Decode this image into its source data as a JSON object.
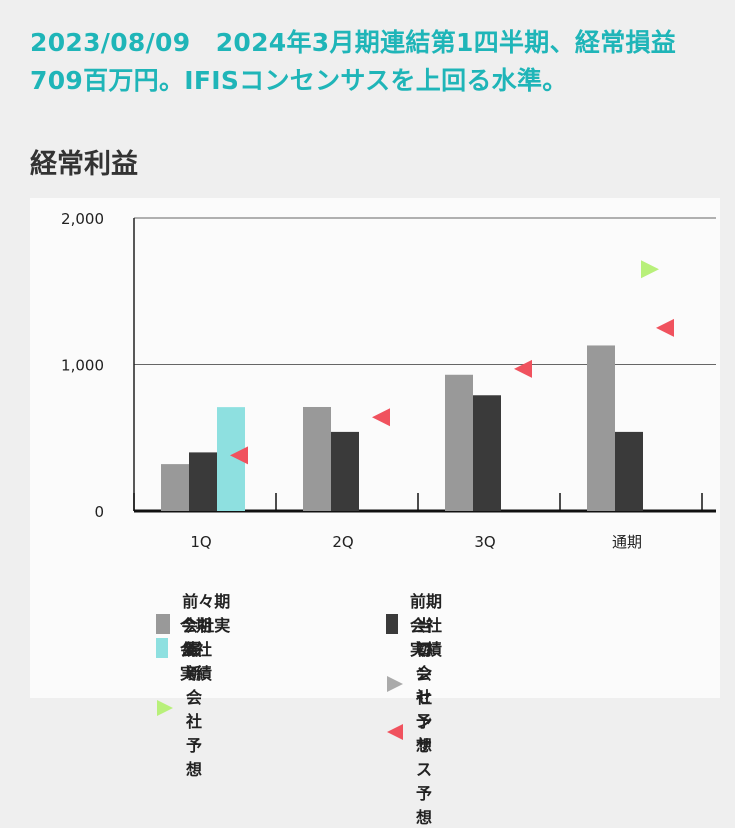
{
  "headline": "2023/08/09　2024年3月期連結第1四半期、経常損益709百万円。IFISコンセンサスを上回る水準。",
  "section_title": "経常利益",
  "colors": {
    "prev2": "#999999",
    "prev": "#3a3a3a",
    "current": "#8ee0e0",
    "initial": "#aaaaaa",
    "latest": "#b8f07a",
    "consensus": "#f0525e"
  },
  "chart_data": {
    "type": "bar",
    "categories": [
      "1Q",
      "2Q",
      "3Q",
      "通期"
    ],
    "ylim": [
      0,
      2000
    ],
    "yticks": [
      0,
      1000,
      2000
    ],
    "ytick_labels": [
      "0",
      "1,000",
      "2,000"
    ],
    "series": [
      {
        "name": "前々期会社実績",
        "kind": "bar",
        "color_key": "prev2",
        "values": [
          320,
          710,
          930,
          1130
        ]
      },
      {
        "name": "前期会社実績",
        "kind": "bar",
        "color_key": "prev",
        "values": [
          400,
          540,
          790,
          540
        ]
      },
      {
        "name": "今期会社実績",
        "kind": "bar",
        "color_key": "current",
        "values": [
          709,
          null,
          null,
          null
        ]
      },
      {
        "name": "当初会社予想",
        "kind": "marker-right",
        "color_key": "initial",
        "values": [
          null,
          null,
          null,
          null
        ]
      },
      {
        "name": "最新会社予想",
        "kind": "marker-right",
        "color_key": "latest",
        "values": [
          null,
          null,
          null,
          1650
        ]
      },
      {
        "name": "コンセンサス予想",
        "kind": "marker-left",
        "color_key": "consensus",
        "values": [
          380,
          640,
          970,
          1250
        ]
      }
    ],
    "legend_position": "bottom",
    "grid": true
  }
}
